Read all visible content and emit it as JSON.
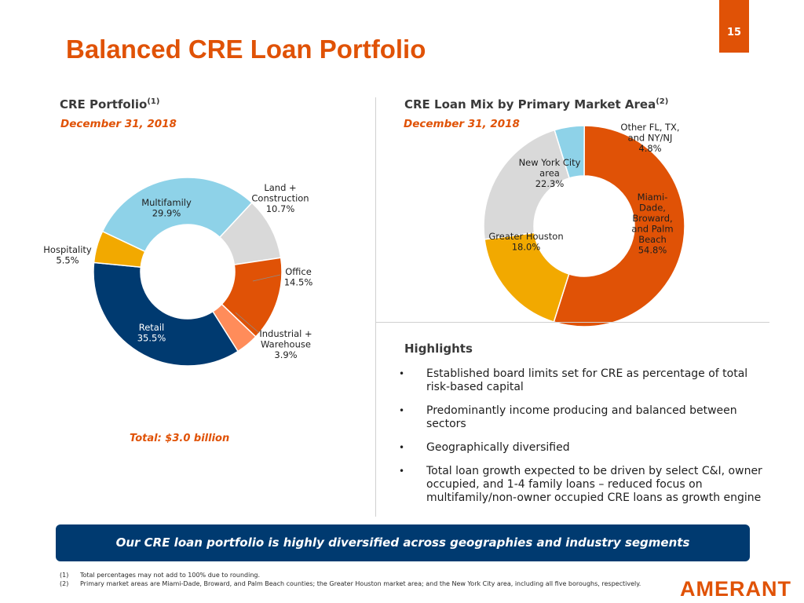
{
  "page_number": "15",
  "title": "Balanced CRE Loan Portfolio",
  "left_section": {
    "title": "CRE Portfolio",
    "footnote_ref": "(1)",
    "date": "December 31, 2018",
    "total": "Total: $3.0 billion"
  },
  "right_section": {
    "title": "CRE Loan Mix by Primary Market Area",
    "footnote_ref": "(2)",
    "date": "December 31, 2018"
  },
  "colors": {
    "accent": "#e05206",
    "navy": "#003a70",
    "light_blue": "#8ed2e8",
    "gray": "#d9d9d9",
    "gold": "#f2a900",
    "peach": "#ff8c5a"
  },
  "chart_data": [
    {
      "type": "pie",
      "title": "CRE Portfolio",
      "slices": [
        {
          "label_lines": [
            "Land +",
            "Construction",
            "10.7%"
          ],
          "name": "Land + Construction",
          "value": 10.7,
          "color": "#d9d9d9"
        },
        {
          "label_lines": [
            "Office",
            "14.5%"
          ],
          "name": "Office",
          "value": 14.5,
          "color": "#e05206"
        },
        {
          "label_lines": [
            "Industrial +",
            "Warehouse",
            "3.9%"
          ],
          "name": "Industrial + Warehouse",
          "value": 3.9,
          "color": "#ff8c5a"
        },
        {
          "label_lines": [
            "Retail",
            "35.5%"
          ],
          "name": "Retail",
          "value": 35.5,
          "color": "#003a70"
        },
        {
          "label_lines": [
            "Hospitality",
            "5.5%"
          ],
          "name": "Hospitality",
          "value": 5.5,
          "color": "#f2a900"
        },
        {
          "label_lines": [
            "Multifamily",
            "29.9%"
          ],
          "name": "Multifamily",
          "value": 29.9,
          "color": "#8ed2e8"
        }
      ]
    },
    {
      "type": "pie",
      "title": "CRE Loan Mix by Primary Market Area",
      "slices": [
        {
          "label_lines": [
            "Other FL, TX,",
            "and NY/NJ",
            "4.8%"
          ],
          "name": "Other FL, TX, and NY/NJ",
          "value": 4.8,
          "color": "#8ed2e8"
        },
        {
          "label_lines": [
            "Miami-",
            "Dade,",
            "Broward,",
            "and Palm",
            "Beach",
            "54.8%"
          ],
          "name": "Miami-Dade, Broward, and Palm Beach",
          "value": 54.8,
          "color": "#e05206"
        },
        {
          "label_lines": [
            "Greater Houston",
            "18.0%"
          ],
          "name": "Greater Houston",
          "value": 18.0,
          "color": "#f2a900"
        },
        {
          "label_lines": [
            "New York City",
            "area",
            "22.3%"
          ],
          "name": "New York City area",
          "value": 22.3,
          "color": "#d9d9d9"
        }
      ]
    }
  ],
  "highlights": {
    "title": "Highlights",
    "bullet_symbol": "•",
    "items": [
      "Established board limits set for CRE as percentage of total risk-based capital",
      "Predominantly income producing and balanced between sectors",
      "Geographically diversified",
      "Total loan growth expected to be driven by select C&I, owner occupied, and 1-4 family loans – reduced focus on multifamily/non-owner occupied CRE loans as growth engine"
    ]
  },
  "banner": "Our CRE loan portfolio is highly diversified across geographies and industry segments",
  "footnotes": [
    {
      "num": "(1)",
      "text": "Total percentages may not add to 100% due to rounding."
    },
    {
      "num": "(2)",
      "text": "Primary market areas are Miami-Dade, Broward, and Palm Beach counties; the Greater Houston market area; and the New York City area, including all five boroughs, respectively."
    }
  ],
  "logo": "AMERANT"
}
